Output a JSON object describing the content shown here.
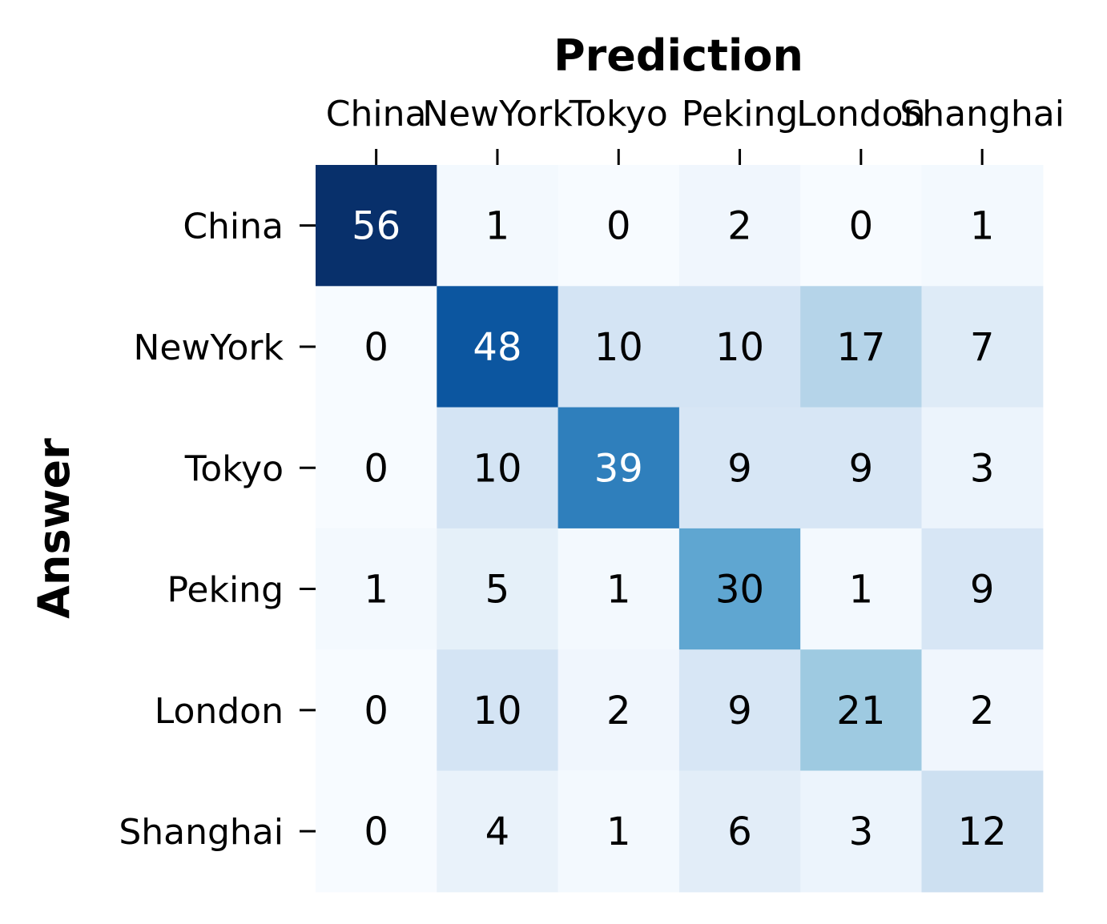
{
  "chart_data": {
    "type": "heatmap",
    "xlabel": "Prediction",
    "ylabel": "Answer",
    "x_position": "top",
    "x_categories": [
      "China",
      "NewYork",
      "Tokyo",
      "Peking",
      "London",
      "Shanghai"
    ],
    "y_categories": [
      "China",
      "NewYork",
      "Tokyo",
      "Peking",
      "London",
      "Shanghai"
    ],
    "values": [
      [
        56,
        1,
        0,
        2,
        0,
        1
      ],
      [
        0,
        48,
        10,
        10,
        17,
        7
      ],
      [
        0,
        10,
        39,
        9,
        9,
        3
      ],
      [
        1,
        5,
        1,
        30,
        1,
        9
      ],
      [
        0,
        10,
        2,
        9,
        21,
        2
      ],
      [
        0,
        4,
        1,
        6,
        3,
        12
      ]
    ],
    "colormap": "Blues",
    "vmin": 0,
    "vmax": 56,
    "colorbar": false,
    "annotations": true
  }
}
